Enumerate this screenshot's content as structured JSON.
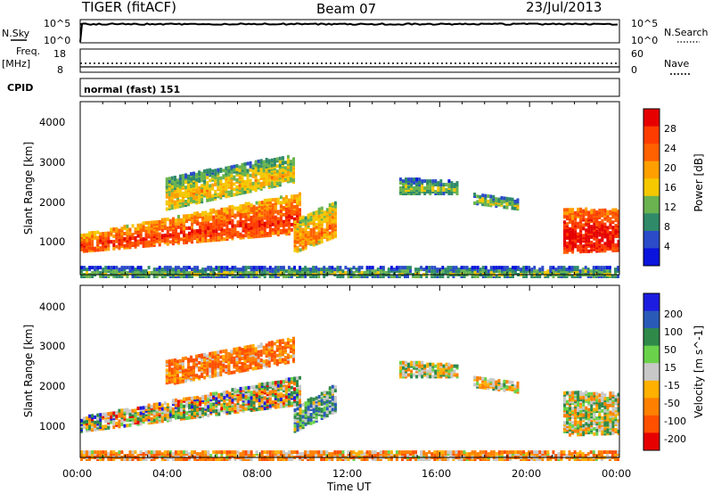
{
  "header": {
    "radar": "TIGER (fitACF)",
    "beam": "Beam 07",
    "date": "23/Jul/2013"
  },
  "noise_panel": {
    "left_label": "N.Sky",
    "right_label": "N.Search",
    "left_ticks": [
      "10^5",
      "10^0"
    ],
    "right_ticks": [
      "10^5",
      "10^0"
    ]
  },
  "freq_panel": {
    "left_label_1": "Freq.",
    "left_label_2": "[MHz]",
    "right_label": "Nave",
    "left_ticks": [
      "18",
      "8"
    ],
    "right_ticks": [
      "60",
      "0"
    ]
  },
  "cpid_panel": {
    "label": "CPID",
    "text": "normal (fast) 151"
  },
  "time_axis": {
    "label": "Time UT",
    "ticks": [
      "00:00",
      "04:00",
      "08:00",
      "12:00",
      "16:00",
      "20:00",
      "00:00"
    ]
  },
  "range_axis": {
    "label": "Slant Range [km]",
    "ticks": [
      "1000",
      "2000",
      "3000",
      "4000"
    ]
  },
  "colors": {
    "power_scale": [
      "#0a14dc",
      "#2b4bc9",
      "#2f8a6a",
      "#6ab350",
      "#f5c800",
      "#ffa000",
      "#ff6000",
      "#ff3c00",
      "#e60000"
    ],
    "velocity_scale": [
      "#1c1ce0",
      "#2a5ab8",
      "#2f8a4a",
      "#6ad24a",
      "#c8c8c8",
      "#ffb000",
      "#ff8000",
      "#ff5000",
      "#e60000"
    ]
  },
  "chart_data": [
    {
      "type": "heatmap",
      "name_label": "Power [dB]",
      "ylabel": "Slant Range [km]",
      "xlabel": "Time UT",
      "xlim": [
        0,
        24
      ],
      "ylim": [
        180,
        4600
      ],
      "colorbar": {
        "label": "Power [dB]",
        "ticks": [
          "4",
          "8",
          "12",
          "16",
          "20",
          "24",
          "28"
        ],
        "range": [
          0,
          32
        ]
      },
      "bands": [
        {
          "t0": 0.0,
          "t1": 9.8,
          "r0a": 820,
          "r1a": 1250,
          "r0b": 1300,
          "r1b": 2300,
          "level": 20
        },
        {
          "t0": 3.8,
          "t1": 9.5,
          "r0a": 1900,
          "r1a": 2700,
          "r0b": 2600,
          "r1b": 3300,
          "level": 11
        },
        {
          "t0": 9.5,
          "t1": 11.3,
          "r0a": 800,
          "r1a": 1600,
          "r0b": 1200,
          "r1b": 2100,
          "level": 15
        },
        {
          "t0": 14.2,
          "t1": 16.8,
          "r0a": 2300,
          "r1a": 2700,
          "r0b": 2300,
          "r1b": 2600,
          "level": 7
        },
        {
          "t0": 17.5,
          "t1": 19.5,
          "r0a": 2050,
          "r1a": 2300,
          "r0b": 1900,
          "r1b": 2150,
          "level": 8
        },
        {
          "t0": 21.5,
          "t1": 24.0,
          "r0a": 800,
          "r1a": 1900,
          "r0b": 850,
          "r1b": 1900,
          "level": 24
        },
        {
          "t0": 0.0,
          "t1": 24.0,
          "r0a": 180,
          "r1a": 420,
          "r0b": 180,
          "r1b": 420,
          "level": 6
        }
      ]
    },
    {
      "type": "heatmap",
      "name_label": "Velocity [m s^-1]",
      "ylabel": "Slant Range [km]",
      "xlabel": "Time UT",
      "xlim": [
        0,
        24
      ],
      "ylim": [
        180,
        4600
      ],
      "colorbar": {
        "label": "Velocity [m s^-1]",
        "ticks": [
          "200",
          "100",
          "50",
          "15",
          "-15",
          "-50",
          "-100",
          "-200"
        ],
        "range": [
          -250,
          250
        ]
      },
      "bands": [
        {
          "t0": 0.0,
          "t1": 9.8,
          "r0a": 900,
          "r1a": 1250,
          "r0b": 1600,
          "r1b": 2300,
          "level": 0
        },
        {
          "t0": 3.8,
          "t1": 9.5,
          "r0a": 2100,
          "r1a": 2700,
          "r0b": 2700,
          "r1b": 3300,
          "level": -60
        },
        {
          "t0": 9.5,
          "t1": 11.3,
          "r0a": 900,
          "r1a": 1500,
          "r0b": 1400,
          "r1b": 2100,
          "level": 40
        },
        {
          "t0": 14.2,
          "t1": 16.8,
          "r0a": 2300,
          "r1a": 2700,
          "r0b": 2300,
          "r1b": 2600,
          "level": 0
        },
        {
          "t0": 17.5,
          "t1": 19.5,
          "r0a": 2050,
          "r1a": 2300,
          "r0b": 1900,
          "r1b": 2150,
          "level": 0
        },
        {
          "t0": 21.5,
          "t1": 24.0,
          "r0a": 800,
          "r1a": 1900,
          "r0b": 850,
          "r1b": 1900,
          "level": 0
        },
        {
          "t0": 0.0,
          "t1": 24.0,
          "r0a": 180,
          "r1a": 400,
          "r0b": 180,
          "r1b": 400,
          "level": -40
        }
      ]
    }
  ]
}
